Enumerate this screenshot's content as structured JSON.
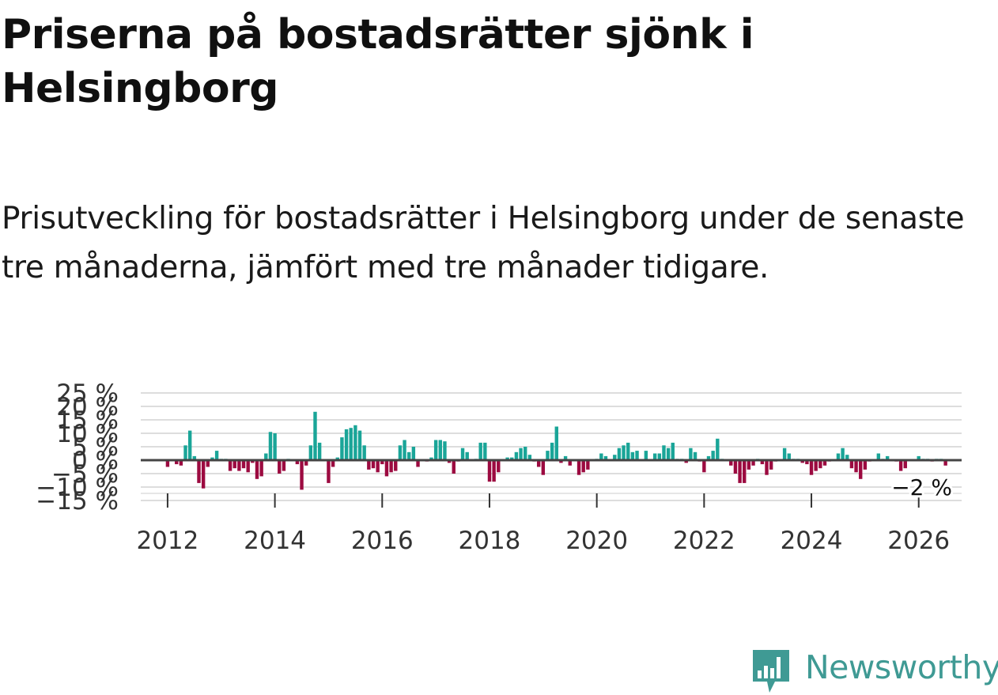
{
  "title": "Priserna på bostadsrätter sjönk i Helsingborg",
  "subtitle": "Prisutveckling för bostadsrätter i Helsingborg under de senaste tre månaderna, jämfört med tre månader tidigare.",
  "logo": {
    "text": "Newsworthy"
  },
  "colors": {
    "positive": "#1aa598",
    "negative": "#9c0a40",
    "zero_line": "#444444",
    "grid": "#dddddd",
    "brand": "#3f9a94"
  },
  "chart_data": {
    "type": "bar",
    "title": "Priserna på bostadsrätter sjönk i Helsingborg",
    "subtitle": "Prisutveckling för bostadsrätter i Helsingborg under de senaste tre månaderna, jämfört med tre månader tidigare.",
    "xlabel": "",
    "ylabel": "",
    "x_start": "2012-01",
    "frequency": "monthly",
    "xlim": [
      2011.5,
      2026.8
    ],
    "ylim": [
      -15,
      25
    ],
    "y_ticks": [
      25,
      20,
      15,
      10,
      5,
      0,
      -5,
      -10,
      -15
    ],
    "y_tick_labels": [
      "25 %",
      "20 %",
      "15 %",
      "10 %",
      "5 %",
      "0 %",
      "−5 %",
      "−10 %",
      "−15 %"
    ],
    "x_ticks": [
      2012,
      2014,
      2016,
      2018,
      2020,
      2022,
      2024,
      2026
    ],
    "x_tick_labels": [
      "2012",
      "2014",
      "2016",
      "2018",
      "2020",
      "2022",
      "2024",
      "2026"
    ],
    "last_value_label": "−2 %",
    "values": [
      -2.5,
      0,
      -1.5,
      -2,
      5.5,
      11,
      1.5,
      -8.5,
      -10.5,
      -2.5,
      1,
      3.5,
      0.5,
      0.5,
      -4,
      -3,
      -4,
      -3,
      -4.5,
      -1,
      -7,
      -6,
      2.5,
      10.5,
      10,
      -5,
      -4,
      0.5,
      0,
      -1.5,
      -11,
      -2,
      5.5,
      18,
      6.5,
      0,
      -8.5,
      -2.5,
      1,
      8.5,
      11.5,
      12,
      13,
      11,
      5.5,
      -3.5,
      -3,
      -4.5,
      -1.5,
      -6,
      -4.5,
      -4,
      5.5,
      7.5,
      3,
      5,
      -2.5,
      0,
      -0.5,
      1,
      7.5,
      7.5,
      7,
      -1,
      -5,
      -0.5,
      4.5,
      3,
      0,
      0.5,
      6.5,
      6.5,
      -8,
      -8,
      -4.5,
      0,
      1,
      1,
      3,
      4.5,
      5,
      2,
      -0.5,
      -2.5,
      -5.5,
      3.5,
      6.5,
      12.5,
      -1,
      1.5,
      -2,
      0,
      -5.5,
      -4.5,
      -3.5,
      0,
      0.5,
      2.5,
      1.5,
      0,
      2,
      4.5,
      5.5,
      6.5,
      3,
      3.5,
      0,
      3.5,
      0,
      2.5,
      2.5,
      5.5,
      4.5,
      6.5,
      0.5,
      0.5,
      -1,
      4.5,
      3,
      -0.5,
      -4.5,
      1.5,
      3.5,
      8,
      0.5,
      0,
      -2,
      -5,
      -8.5,
      -8.5,
      -3.5,
      -2,
      0.5,
      -1.5,
      -5.5,
      -3.5,
      -0.5,
      0,
      4.5,
      2.5,
      0.5,
      0.5,
      -1,
      -1.5,
      -5.5,
      -4,
      -3,
      -2,
      -0.5,
      0,
      2.5,
      4.5,
      2,
      -3,
      -4.5,
      -7,
      -3.5,
      -0.5,
      0,
      2.5,
      0.5,
      1.5,
      0,
      -0.5,
      -4,
      -3,
      0,
      0,
      1.5,
      0.5,
      0.5,
      -0.5,
      0.5,
      0.5,
      -2
    ]
  }
}
